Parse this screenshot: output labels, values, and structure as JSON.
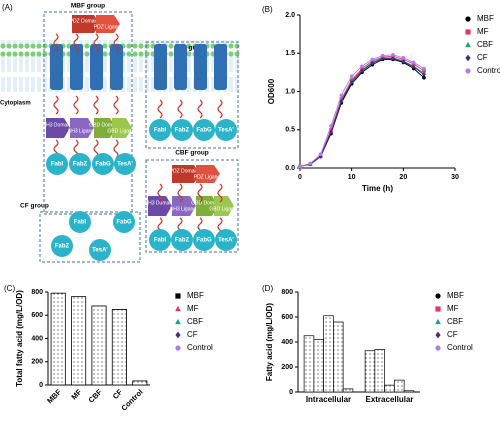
{
  "diagram": {
    "panel": "(A)",
    "groups": [
      "MBF group",
      "MF group",
      "CBF group",
      "CF group"
    ],
    "cytoplasm": "Cytoplasm",
    "labels": {
      "pdz_domain": "PDZ Domain",
      "pdz_ligand": "PDZ Ligand",
      "sh3_domain": "SH3 Domain",
      "sh3_ligand": "SH3 Ligand",
      "gbd_domain": "GBD Domain",
      "gbd_ligand": "GBD Ligand"
    },
    "enzymes": [
      "FabI",
      "FabZ",
      "FabG",
      "TesA'"
    ]
  },
  "chart_data": [
    {
      "type": "line",
      "panel": "(B)",
      "xlabel": "Time (h)",
      "ylabel": "OD600",
      "x": [
        0,
        2,
        4,
        6,
        8,
        10,
        12,
        14,
        16,
        18,
        20,
        22,
        24
      ],
      "xlim": [
        0,
        30
      ],
      "xticks": [
        0,
        10,
        20,
        30
      ],
      "ylim": [
        0,
        2
      ],
      "yticks": [
        {
          "value": 0,
          "label": "0.0"
        },
        0.5,
        {
          "value": 1,
          "label": "1.0"
        },
        1.5,
        {
          "value": 2,
          "label": "2.0"
        }
      ],
      "series": [
        {
          "name": "MBF",
          "color": "#000000",
          "marker": "circle",
          "values": [
            0.02,
            0.05,
            0.15,
            0.45,
            0.85,
            1.1,
            1.25,
            1.35,
            1.42,
            1.42,
            1.38,
            1.3,
            1.18
          ]
        },
        {
          "name": "MF",
          "color": "#e8336b",
          "marker": "square",
          "values": [
            0.02,
            0.05,
            0.16,
            0.5,
            0.9,
            1.15,
            1.3,
            1.4,
            1.45,
            1.46,
            1.42,
            1.36,
            1.27
          ]
        },
        {
          "name": "CBF",
          "color": "#1f9e89",
          "marker": "triangle",
          "values": [
            0.02,
            0.05,
            0.15,
            0.48,
            0.88,
            1.13,
            1.28,
            1.38,
            1.44,
            1.44,
            1.4,
            1.33,
            1.24
          ]
        },
        {
          "name": "CF",
          "color": "#4b2a7f",
          "marker": "diamond",
          "values": [
            0.02,
            0.05,
            0.15,
            0.47,
            0.87,
            1.12,
            1.27,
            1.37,
            1.43,
            1.43,
            1.39,
            1.32,
            1.22
          ]
        },
        {
          "name": "Control",
          "color": "#b07ee8",
          "marker": "circle",
          "values": [
            0.02,
            0.06,
            0.18,
            0.55,
            0.95,
            1.2,
            1.33,
            1.42,
            1.47,
            1.48,
            1.44,
            1.38,
            1.3
          ]
        }
      ]
    },
    {
      "type": "bar",
      "panel": "(C)",
      "ylabel": "Total fatty acid (mg/L/OD)",
      "categories": [
        "MBF",
        "MF",
        "CBF",
        "CF",
        "Control"
      ],
      "values": [
        790,
        760,
        680,
        650,
        35
      ],
      "colors": [
        "#000000",
        "#e8336b",
        "#1f9e89",
        "#4b2a7f",
        "#b07ee8"
      ],
      "markers": [
        "square",
        "triangle",
        "triangle",
        "diamond",
        "circle"
      ],
      "ylim": [
        0,
        800
      ],
      "yticks": [
        0,
        200,
        400,
        600,
        800
      ]
    },
    {
      "type": "grouped_bar",
      "panel": "(D)",
      "ylabel": "Fatty acid (mg/L/OD)",
      "categories": [
        "Intracellular",
        "Extracellular"
      ],
      "ylim": [
        0,
        800
      ],
      "yticks": [
        0,
        200,
        400,
        600,
        800
      ],
      "series": [
        {
          "name": "MBF",
          "color": "#000000",
          "marker": "circle",
          "values": [
            450,
            330
          ]
        },
        {
          "name": "MF",
          "color": "#e8336b",
          "marker": "square",
          "values": [
            420,
            340
          ]
        },
        {
          "name": "CBF",
          "color": "#1f9e89",
          "marker": "triangle",
          "values": [
            610,
            55
          ]
        },
        {
          "name": "CF",
          "color": "#4b2a7f",
          "marker": "diamond",
          "values": [
            560,
            95
          ]
        },
        {
          "name": "Control",
          "color": "#b07ee8",
          "marker": "circle",
          "values": [
            25,
            10
          ]
        }
      ]
    }
  ]
}
